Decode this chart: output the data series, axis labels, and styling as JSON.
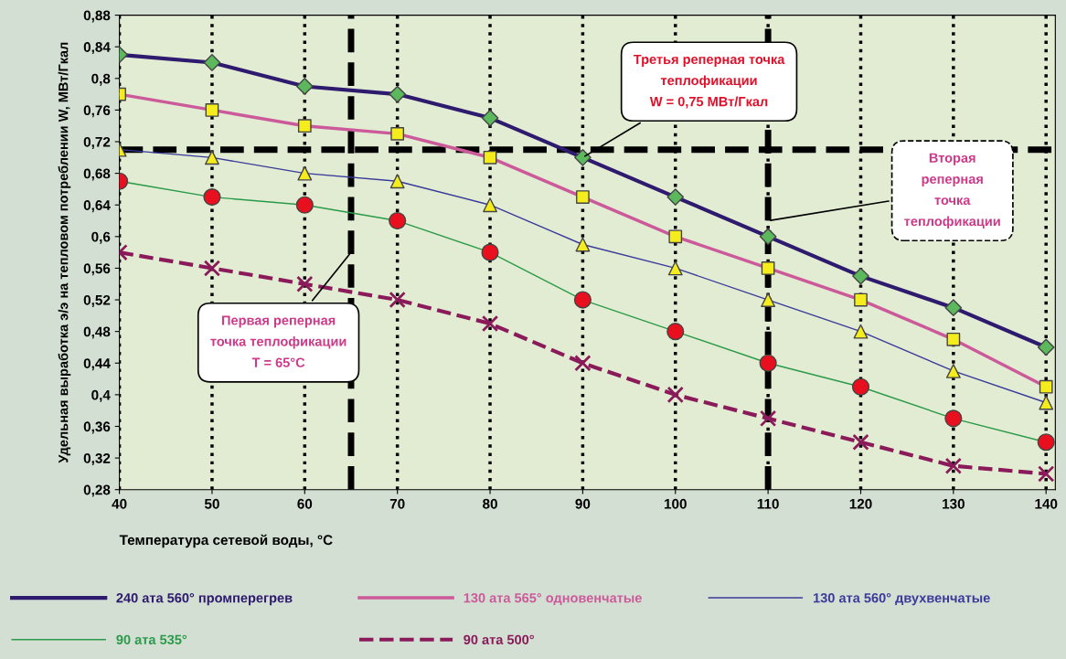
{
  "chart_data": {
    "type": "line",
    "xlabel": "Температура сетевой воды, °С",
    "ylabel": "Удельная выработка э/э на тепловом потреблении W, МВт/Гкал",
    "x": [
      40,
      50,
      60,
      70,
      80,
      90,
      100,
      110,
      120,
      130,
      140
    ],
    "xlim": [
      40,
      141
    ],
    "xticks": [
      40,
      50,
      60,
      70,
      80,
      90,
      100,
      110,
      120,
      130,
      140
    ],
    "ylim": [
      0.28,
      0.88
    ],
    "yticks": [
      {
        "value": 0.28,
        "label": "0,28"
      },
      {
        "value": 0.32,
        "label": "0,32"
      },
      {
        "value": 0.36,
        "label": "0,36"
      },
      {
        "value": 0.4,
        "label": "0,4"
      },
      {
        "value": 0.44,
        "label": "0,44"
      },
      {
        "value": 0.48,
        "label": "0,48"
      },
      {
        "value": 0.52,
        "label": "0,52"
      },
      {
        "value": 0.56,
        "label": "0,56"
      },
      {
        "value": 0.6,
        "label": "0,6"
      },
      {
        "value": 0.64,
        "label": "0,64"
      },
      {
        "value": 0.68,
        "label": "0,68"
      },
      {
        "value": 0.72,
        "label": "0,72"
      },
      {
        "value": 0.76,
        "label": "0,76"
      },
      {
        "value": 0.8,
        "label": "0,8"
      },
      {
        "value": 0.84,
        "label": "0,84"
      },
      {
        "value": 0.88,
        "label": "0,88"
      }
    ],
    "grid": "x",
    "legend": "bottom",
    "series": [
      {
        "name": "240 ата 560° промперегрев",
        "color": "#2e1a6e",
        "marker": "diamond",
        "line_style": "solid",
        "values": [
          0.83,
          0.82,
          0.79,
          0.78,
          0.75,
          0.7,
          0.65,
          0.6,
          0.55,
          0.51,
          0.46
        ]
      },
      {
        "name": "130 ата 565° одновенчатые",
        "color": "#cc5a9a",
        "marker": "square",
        "line_style": "solid",
        "values": [
          0.78,
          0.76,
          0.74,
          0.73,
          0.7,
          0.65,
          0.6,
          0.56,
          0.52,
          0.47,
          0.41
        ]
      },
      {
        "name": "130 ата 560° двухвенчатые",
        "color": "#3a3a9a",
        "marker": "triangle",
        "line_style": "solid",
        "values": [
          0.71,
          0.7,
          0.68,
          0.67,
          0.64,
          0.59,
          0.56,
          0.52,
          0.48,
          0.43,
          0.39
        ]
      },
      {
        "name": "90 ата 535°",
        "color": "#2a9a4a",
        "marker": "circle",
        "line_style": "solid",
        "values": [
          0.67,
          0.65,
          0.64,
          0.62,
          0.58,
          0.52,
          0.48,
          0.44,
          0.41,
          0.37,
          0.34
        ]
      },
      {
        "name": "90 ата 500°",
        "color": "#8a1a5a",
        "marker": "cross",
        "line_style": "dashed",
        "values": [
          0.58,
          0.56,
          0.54,
          0.52,
          0.49,
          0.44,
          0.4,
          0.37,
          0.34,
          0.31,
          0.3
        ]
      }
    ],
    "ref_lines": [
      {
        "axis": "x",
        "value": 65,
        "color": "#000000",
        "line_style": "dashed"
      },
      {
        "axis": "x",
        "value": 110,
        "color": "#000000",
        "line_style": "dashed"
      },
      {
        "axis": "y",
        "value": 0.71,
        "color": "#000000",
        "line_style": "dashed"
      }
    ],
    "annotations": [
      {
        "text": "Третья реперная точка\nтеплофикации\nW = 0,75 МВт/Гкал",
        "x": 90,
        "y": 0.7
      },
      {
        "text": "Вторая\nреперная\nточка\nтеплофикации",
        "x": 110,
        "y": 0.62
      },
      {
        "text": "Первая реперная\nточка теплофикации\nT = 65°C",
        "x": 65,
        "y": 0.58
      }
    ]
  }
}
